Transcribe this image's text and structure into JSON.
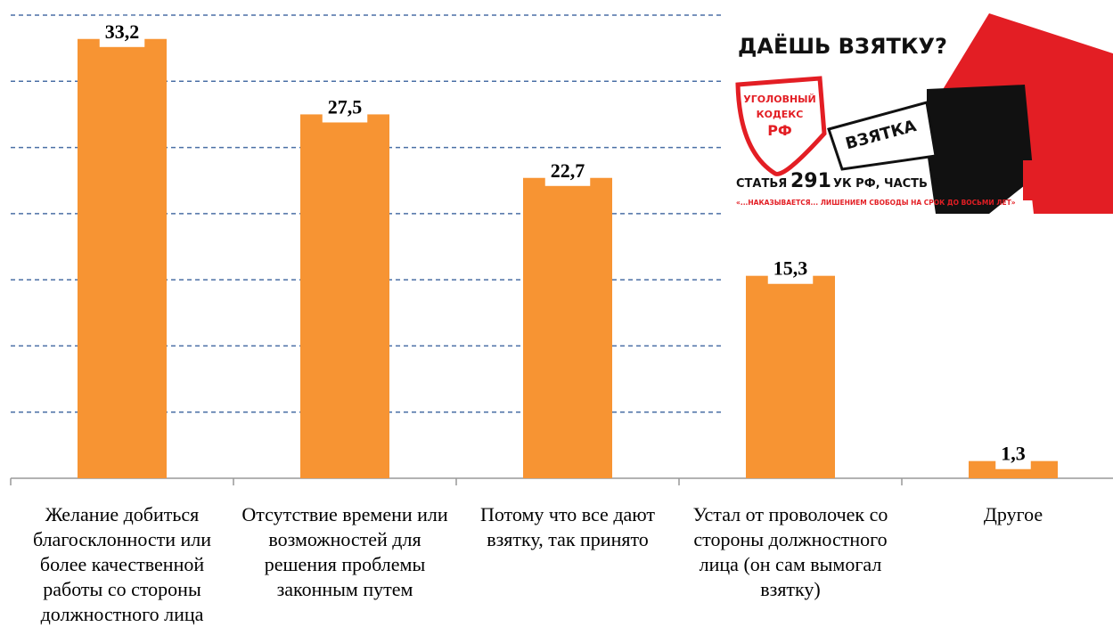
{
  "chart_data": {
    "type": "bar",
    "categories": [
      "Желание добиться благосклонности или более качественной работы со стороны должностного лица",
      "Отсутствие времени или возможностей для решения проблемы законным путем",
      "Потому что все дают взятку, так принято",
      "Устал от проволочек со стороны должностного лица (он сам вымогал взятку)",
      "Другое"
    ],
    "values": [
      33.2,
      27.5,
      22.7,
      15.3,
      1.3
    ],
    "value_labels": [
      "33,2",
      "27,5",
      "22,7",
      "15,3",
      "1,3"
    ],
    "color": "#f79433",
    "ylim": [
      0,
      35
    ],
    "yticks": [
      0,
      5,
      10,
      15,
      20,
      25,
      30,
      35
    ],
    "grid": true,
    "image": {
      "headline": "ДАЁШЬ ВЗЯТКУ?",
      "shield": [
        "УГОЛОВНЫЙ",
        "КОДЕКС",
        "РФ"
      ],
      "envelope": "ВЗЯТКА",
      "article": [
        "СТАТЬЯ",
        "291",
        "УК РФ, ЧАСТЬ 2"
      ],
      "quote": "«...НАКАЗЫВАЕТСЯ... ЛИШЕНИЕМ СВОБОДЫ НА СРОК ДО ВОСЬМИ ЛЕТ»"
    }
  }
}
